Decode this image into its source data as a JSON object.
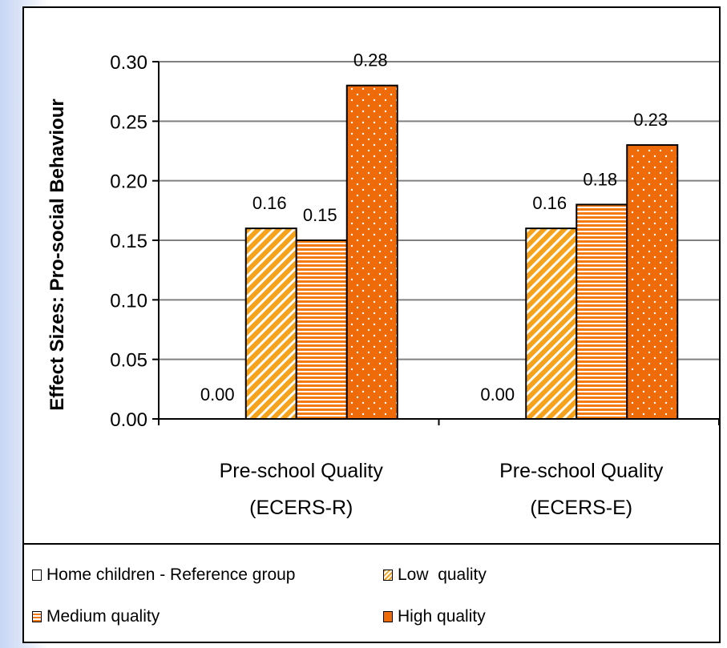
{
  "chart_data": {
    "type": "bar",
    "categories": [
      [
        "Pre-school Quality",
        "(ECERS-R)"
      ],
      [
        "Pre-school Quality",
        "(ECERS-E)"
      ]
    ],
    "series": [
      {
        "name": "Home children - Reference group",
        "values": [
          0.0,
          0.0
        ],
        "labels": [
          "0.00",
          "0.00"
        ],
        "pattern": "none"
      },
      {
        "name": "Low  quality",
        "values": [
          0.16,
          0.16
        ],
        "labels": [
          "0.16",
          "0.16"
        ],
        "pattern": "diagonal",
        "color": "#f7a21b"
      },
      {
        "name": "Medium quality",
        "values": [
          0.15,
          0.18
        ],
        "labels": [
          "0.15",
          "0.18"
        ],
        "pattern": "horizontal",
        "color": "#f47a10"
      },
      {
        "name": "High quality",
        "values": [
          0.28,
          0.23
        ],
        "labels": [
          "0.28",
          "0.23"
        ],
        "pattern": "dotted",
        "color": "#ef6a08"
      }
    ],
    "ylabel": "Effect Sizes: Pro-social Behaviour",
    "ylim": [
      0,
      0.3
    ],
    "yticks": [
      "0.00",
      "0.05",
      "0.10",
      "0.15",
      "0.20",
      "0.25",
      "0.30"
    ],
    "grid": true,
    "legend_position": "bottom"
  }
}
